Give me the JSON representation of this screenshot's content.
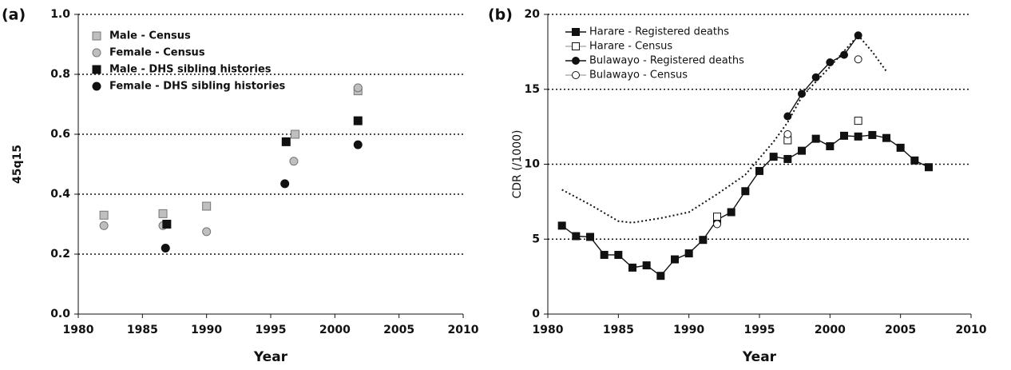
{
  "chart_data": [
    {
      "type": "scatter",
      "label": "(a)",
      "xlabel": "Year",
      "ylabel": "45q15",
      "xlim": [
        1980,
        2010
      ],
      "xticks": [
        1980,
        1985,
        1990,
        1995,
        2000,
        2005,
        2010
      ],
      "ylim": [
        0,
        1
      ],
      "yticks": [
        {
          "value": 0,
          "label": "0.0"
        },
        {
          "value": 0.2,
          "label": "0.2"
        },
        {
          "value": 0.4,
          "label": "0.4"
        },
        {
          "value": 0.6,
          "label": "0.6"
        },
        {
          "value": 0.8,
          "label": "0.8"
        },
        {
          "value": 1,
          "label": "1.0"
        }
      ],
      "grid": true,
      "legend": "upper left",
      "series": [
        {
          "name": "Male - Census",
          "marker": "square",
          "color": "#bfbfbf",
          "line": "none",
          "x": [
            1982,
            1986.6,
            1990,
            1996.9,
            2001.8
          ],
          "values": [
            0.33,
            0.335,
            0.36,
            0.6,
            0.745
          ]
        },
        {
          "name": "Female - Census",
          "marker": "circle",
          "color": "#bfbfbf",
          "line": "none",
          "x": [
            1982,
            1986.6,
            1990,
            1996.8,
            2001.8
          ],
          "values": [
            0.295,
            0.295,
            0.275,
            0.51,
            0.755
          ]
        },
        {
          "name": "Male - DHS sibling histories",
          "marker": "square",
          "color": "#111111",
          "line": "none",
          "x": [
            1986.9,
            1996.2,
            2001.8
          ],
          "values": [
            0.3,
            0.575,
            0.645
          ]
        },
        {
          "name": "Female - DHS sibling histories",
          "marker": "circle",
          "color": "#111111",
          "line": "none",
          "x": [
            1986.8,
            1996.1,
            2001.8
          ],
          "values": [
            0.22,
            0.435,
            0.565
          ]
        }
      ]
    },
    {
      "type": "line",
      "label": "(b)",
      "xlabel": "Year",
      "ylabel": "CDR  (/1000)",
      "xlim": [
        1980,
        2010
      ],
      "xticks": [
        1980,
        1985,
        1990,
        1995,
        2000,
        2005,
        2010
      ],
      "ylim": [
        0,
        20
      ],
      "yticks": [
        0,
        5,
        10,
        15,
        20
      ],
      "grid": true,
      "legend": "upper left",
      "series": [
        {
          "name": "Harare - Registered deaths",
          "marker": "square",
          "color": "#111111",
          "line": "solid",
          "x": [
            1981,
            1982,
            1983,
            1984,
            1985,
            1986,
            1987,
            1988,
            1989,
            1990,
            1991,
            1992,
            1993,
            1994,
            1995,
            1996,
            1997,
            1998,
            1999,
            2000,
            2001,
            2002,
            2003,
            2004,
            2005,
            2006,
            2007
          ],
          "values": [
            5.9,
            5.2,
            5.15,
            3.95,
            3.95,
            3.1,
            3.25,
            2.55,
            3.65,
            4.05,
            4.95,
            6.3,
            6.8,
            8.2,
            9.55,
            10.5,
            10.35,
            10.9,
            11.7,
            11.2,
            11.9,
            11.85,
            11.95,
            11.75,
            11.1,
            10.25,
            9.8
          ]
        },
        {
          "name": "Harare - Census",
          "marker": "square",
          "color": "#ffffff",
          "line": "none",
          "x": [
            1992,
            1997,
            2002
          ],
          "values": [
            6.5,
            11.6,
            12.9
          ]
        },
        {
          "name": "Bulawayo - Registered deaths",
          "marker": "circle",
          "color": "#111111",
          "line": "solid",
          "x": [
            1997,
            1998,
            1999,
            2000,
            2001,
            2002
          ],
          "values": [
            13.2,
            14.7,
            15.8,
            16.8,
            17.3,
            18.6
          ]
        },
        {
          "name": "Bulawayo - Census",
          "marker": "circle",
          "color": "#ffffff",
          "line": "none",
          "x": [
            1992,
            1997,
            2002
          ],
          "values": [
            6.0,
            12.0,
            17.0
          ]
        },
        {
          "marker": "none",
          "color": "#111111",
          "line": "dotted",
          "x": [
            1981,
            1983,
            1985,
            1986,
            1988,
            1990,
            1992,
            1994,
            1996,
            1997,
            1998,
            2000,
            2002,
            2003,
            2004
          ],
          "values": [
            8.3,
            7.3,
            6.2,
            6.1,
            6.4,
            6.8,
            8.0,
            9.3,
            11.5,
            12.8,
            14.5,
            16.5,
            18.6,
            17.5,
            16.2
          ]
        }
      ]
    }
  ]
}
